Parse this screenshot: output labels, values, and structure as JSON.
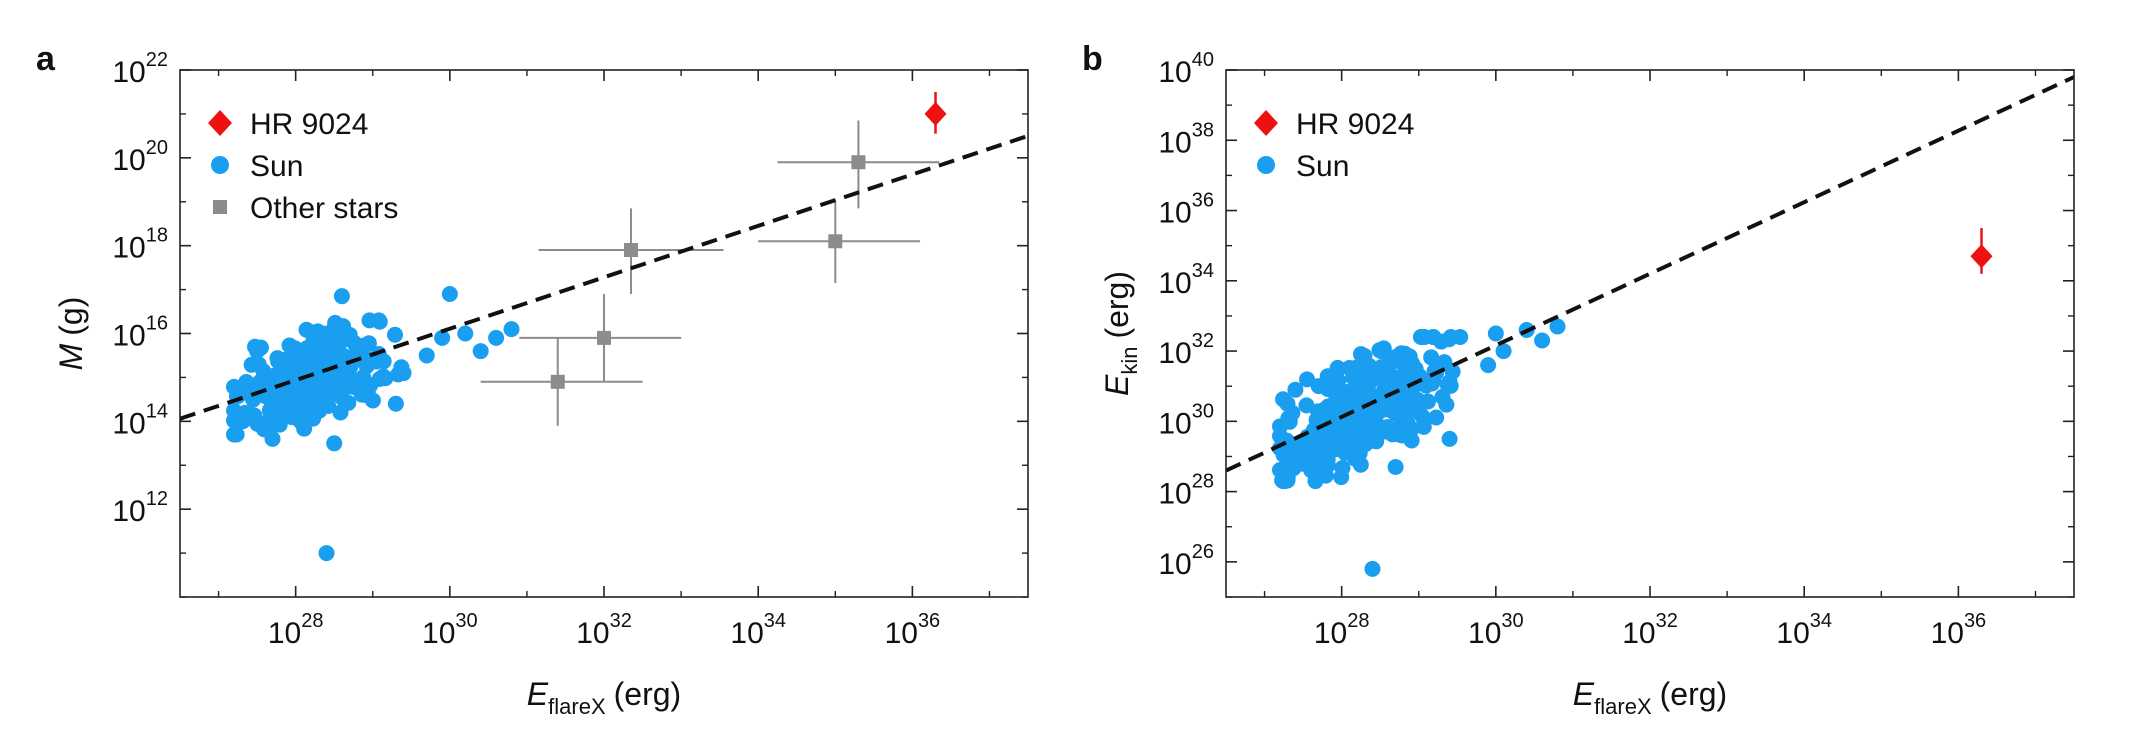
{
  "chart_data": [
    {
      "panel_label": "a",
      "type": "scatter",
      "xscale": "log",
      "yscale": "log",
      "xlim": [
        3.16e+26,
        3.16e+37
      ],
      "ylim": [
        10000000000.0,
        1e+22
      ],
      "xlabel": {
        "symbol": "E",
        "subscript": "flareX",
        "unit": "(erg)"
      },
      "ylabel": {
        "symbol": "M",
        "subscript": "",
        "unit": "(g)"
      },
      "x_ticks": [
        {
          "base": "10",
          "exp": "28"
        },
        {
          "base": "10",
          "exp": "30"
        },
        {
          "base": "10",
          "exp": "32"
        },
        {
          "base": "10",
          "exp": "34"
        },
        {
          "base": "10",
          "exp": "36"
        }
      ],
      "y_ticks": [
        {
          "base": "10",
          "exp": "12"
        },
        {
          "base": "10",
          "exp": "14"
        },
        {
          "base": "10",
          "exp": "16"
        },
        {
          "base": "10",
          "exp": "18"
        },
        {
          "base": "10",
          "exp": "20"
        },
        {
          "base": "10",
          "exp": "22"
        }
      ],
      "grid": false,
      "legend_position": "top-left",
      "legend": [
        {
          "label": "HR 9024",
          "marker": "diamond",
          "color": "#ee1111"
        },
        {
          "label": "Sun",
          "marker": "circle",
          "color": "#1a9ff0"
        },
        {
          "label": "Other stars",
          "marker": "square",
          "color": "#8c8c8c"
        }
      ],
      "fit_line": {
        "style": "dashed",
        "color": "#111111",
        "x_log": [
          26.5,
          37.5
        ],
        "y_log": [
          14.06,
          20.5
        ]
      },
      "series": [
        {
          "name": "HR 9024",
          "marker": "diamond",
          "color": "#ee1111",
          "points": [
            {
              "x_log": 36.3,
              "y_log": 21.0,
              "yerr_log": [
                20.55,
                21.5
              ]
            }
          ]
        },
        {
          "name": "Sun",
          "marker": "circle",
          "color": "#1a9ff0",
          "cluster": {
            "count": 260,
            "x_log_range": [
              27.2,
              29.4
            ],
            "y_log_range": [
              13.7,
              16.3
            ],
            "slope": 0.6,
            "center": [
              28.2,
              15.0
            ]
          },
          "points": [
            {
              "x_log": 28.4,
              "y_log": 11.0
            },
            {
              "x_log": 30.2,
              "y_log": 16.0
            },
            {
              "x_log": 30.4,
              "y_log": 15.6
            },
            {
              "x_log": 30.6,
              "y_log": 15.9
            },
            {
              "x_log": 30.8,
              "y_log": 16.1
            },
            {
              "x_log": 30.0,
              "y_log": 16.9
            },
            {
              "x_log": 28.6,
              "y_log": 16.85
            },
            {
              "x_log": 29.9,
              "y_log": 15.9
            },
            {
              "x_log": 29.7,
              "y_log": 15.5
            },
            {
              "x_log": 29.3,
              "y_log": 14.4
            },
            {
              "x_log": 28.5,
              "y_log": 13.5
            },
            {
              "x_log": 27.7,
              "y_log": 13.6
            },
            {
              "x_log": 27.5,
              "y_log": 15.6
            },
            {
              "x_log": 28.9,
              "y_log": 14.6
            }
          ]
        },
        {
          "name": "Other stars",
          "marker": "square",
          "color": "#8c8c8c",
          "points": [
            {
              "x_log": 31.4,
              "y_log": 14.9,
              "xerr_log": [
                30.4,
                32.5
              ],
              "yerr_log": [
                13.9,
                15.9
              ]
            },
            {
              "x_log": 32.0,
              "y_log": 15.9,
              "xerr_log": [
                30.9,
                33.0
              ],
              "yerr_log": [
                14.9,
                16.9
              ]
            },
            {
              "x_log": 32.35,
              "y_log": 17.9,
              "xerr_log": [
                31.15,
                33.55
              ],
              "yerr_log": [
                16.9,
                18.85
              ]
            },
            {
              "x_log": 35.0,
              "y_log": 18.1,
              "xerr_log": [
                34.0,
                36.1
              ],
              "yerr_log": [
                17.15,
                19.0
              ]
            },
            {
              "x_log": 35.3,
              "y_log": 19.9,
              "xerr_log": [
                34.25,
                36.35
              ],
              "yerr_log": [
                18.85,
                20.85
              ]
            }
          ]
        }
      ]
    },
    {
      "panel_label": "b",
      "type": "scatter",
      "xscale": "log",
      "yscale": "log",
      "xlim": [
        3.16e+26,
        3.16e+37
      ],
      "ylim": [
        1e+25,
        1e+40
      ],
      "xlabel": {
        "symbol": "E",
        "subscript": "flareX",
        "unit": "(erg)"
      },
      "ylabel": {
        "symbol": "E",
        "subscript": "kin",
        "unit": "(erg)"
      },
      "x_ticks": [
        {
          "base": "10",
          "exp": "28"
        },
        {
          "base": "10",
          "exp": "30"
        },
        {
          "base": "10",
          "exp": "32"
        },
        {
          "base": "10",
          "exp": "34"
        },
        {
          "base": "10",
          "exp": "36"
        }
      ],
      "y_ticks": [
        {
          "base": "10",
          "exp": "26"
        },
        {
          "base": "10",
          "exp": "28"
        },
        {
          "base": "10",
          "exp": "30"
        },
        {
          "base": "10",
          "exp": "32"
        },
        {
          "base": "10",
          "exp": "34"
        },
        {
          "base": "10",
          "exp": "36"
        },
        {
          "base": "10",
          "exp": "38"
        },
        {
          "base": "10",
          "exp": "40"
        }
      ],
      "grid": false,
      "legend_position": "top-left",
      "legend": [
        {
          "label": "HR 9024",
          "marker": "diamond",
          "color": "#ee1111"
        },
        {
          "label": "Sun",
          "marker": "circle",
          "color": "#1a9ff0"
        }
      ],
      "fit_line": {
        "style": "dashed",
        "color": "#111111",
        "x_log": [
          26.5,
          37.5
        ],
        "y_log": [
          28.6,
          39.8
        ]
      },
      "series": [
        {
          "name": "HR 9024",
          "marker": "diamond",
          "color": "#ee1111",
          "points": [
            {
              "x_log": 36.3,
              "y_log": 34.7,
              "yerr_log": [
                34.2,
                35.5
              ]
            }
          ]
        },
        {
          "name": "Sun",
          "marker": "circle",
          "color": "#1a9ff0",
          "cluster": {
            "count": 280,
            "x_log_range": [
              27.2,
              29.6
            ],
            "y_log_range": [
              28.3,
              32.4
            ],
            "slope": 1.2,
            "center": [
              28.3,
              30.4
            ]
          },
          "points": [
            {
              "x_log": 28.4,
              "y_log": 25.8
            },
            {
              "x_log": 30.0,
              "y_log": 32.5
            },
            {
              "x_log": 30.1,
              "y_log": 32.0
            },
            {
              "x_log": 30.4,
              "y_log": 32.6
            },
            {
              "x_log": 30.6,
              "y_log": 32.3
            },
            {
              "x_log": 30.8,
              "y_log": 32.7
            },
            {
              "x_log": 29.9,
              "y_log": 31.6
            },
            {
              "x_log": 29.4,
              "y_log": 29.5
            },
            {
              "x_log": 27.3,
              "y_log": 28.4
            },
            {
              "x_log": 27.4,
              "y_log": 30.9
            },
            {
              "x_log": 28.7,
              "y_log": 28.7
            }
          ]
        }
      ]
    }
  ]
}
